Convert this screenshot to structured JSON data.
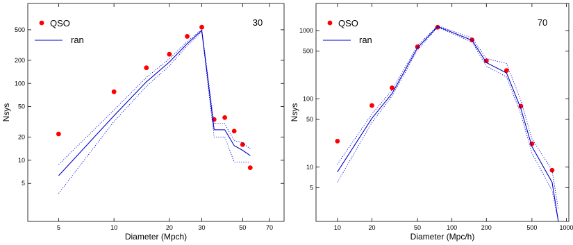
{
  "chart_data": [
    {
      "type": "line",
      "xscale": "log",
      "yscale": "log",
      "xlabel": "Diameter (Mpch)",
      "ylabel": "Nsys",
      "corner_label": "30",
      "xlim": [
        3.4,
        84
      ],
      "ylim": [
        1.6,
        1100
      ],
      "xticks": [
        5,
        10,
        20,
        30,
        50,
        70
      ],
      "xtick_labels": [
        "5",
        "10",
        "20",
        "30",
        "50",
        "70"
      ],
      "yticks": [
        5,
        10,
        20,
        50,
        100,
        200,
        500
      ],
      "ytick_labels": [
        "5",
        "10",
        "20",
        "50",
        "100",
        "200",
        "500"
      ],
      "legend": {
        "placement": "top-left",
        "entries": [
          "QSO",
          "ran"
        ]
      },
      "series": [
        {
          "name": "QSO",
          "style": "points",
          "color": "#ff0000",
          "x": [
            5,
            10,
            15,
            20,
            25,
            30,
            35,
            40,
            45,
            50,
            55
          ],
          "y": [
            22,
            78,
            160,
            240,
            410,
            540,
            34,
            36,
            24,
            16,
            8
          ]
        },
        {
          "name": "ran",
          "style": "solid",
          "color": "#0000cc",
          "x": [
            5,
            10,
            15,
            20,
            25,
            30,
            35,
            40,
            45,
            50,
            55
          ],
          "y": [
            6.3,
            38,
            105,
            190,
            330,
            490,
            25,
            25,
            15.5,
            13.5,
            11.5
          ]
        },
        {
          "style": "dotted",
          "color": "#0000cc",
          "x": [
            5,
            10,
            15,
            20,
            25,
            30,
            35,
            40,
            45,
            50,
            55
          ],
          "y": [
            8.8,
            45,
            120,
            210,
            350,
            505,
            30,
            30,
            18,
            17,
            14
          ]
        },
        {
          "style": "dotted",
          "color": "#0000cc",
          "x": [
            5,
            10,
            15,
            20,
            25,
            30,
            35,
            40,
            45,
            50,
            55
          ],
          "y": [
            3.7,
            32,
            92,
            170,
            310,
            470,
            20,
            20,
            9.5,
            9.5,
            9.5
          ]
        }
      ]
    },
    {
      "type": "line",
      "xscale": "log",
      "yscale": "log",
      "xlabel": "Diameter (Mpc/h)",
      "ylabel": "Nsys",
      "corner_label": "70",
      "xlim": [
        6.5,
        1050
      ],
      "ylim": [
        1.6,
        2500
      ],
      "xticks": [
        10,
        20,
        50,
        100,
        200,
        500,
        1000
      ],
      "xtick_labels": [
        "10",
        "20",
        "50",
        "100",
        "200",
        "500",
        "1000"
      ],
      "yticks": [
        5,
        10,
        50,
        100,
        500,
        1000
      ],
      "ytick_labels": [
        "5",
        "10",
        "50",
        "100",
        "500",
        "1000"
      ],
      "legend": {
        "placement": "top-left",
        "entries": [
          "QSO",
          "ran"
        ]
      },
      "series": [
        {
          "name": "QSO",
          "style": "points",
          "color": "#ff0000",
          "x": [
            10,
            20,
            30,
            50,
            75,
            150,
            200,
            300,
            400,
            500,
            750
          ],
          "y": [
            24,
            80,
            145,
            580,
            1120,
            730,
            360,
            260,
            78,
            22,
            9
          ]
        },
        {
          "name": "ran",
          "style": "solid",
          "color": "#0000cc",
          "x": [
            10,
            20,
            30,
            50,
            75,
            150,
            200,
            300,
            400,
            500,
            750,
            850
          ],
          "y": [
            8.5,
            52,
            120,
            560,
            1150,
            720,
            340,
            240,
            72,
            20,
            6,
            1.6
          ]
        },
        {
          "style": "dotted",
          "color": "#0000cc",
          "x": [
            10,
            20,
            30,
            50,
            75,
            150,
            200,
            300,
            400,
            500,
            750,
            850
          ],
          "y": [
            11,
            60,
            135,
            600,
            1180,
            780,
            390,
            330,
            95,
            26,
            9,
            2.4
          ]
        },
        {
          "style": "dotted",
          "color": "#0000cc",
          "x": [
            10,
            20,
            30,
            50,
            75,
            150,
            200,
            300,
            400,
            500,
            750,
            850
          ],
          "y": [
            6,
            45,
            110,
            520,
            1120,
            680,
            300,
            210,
            60,
            16,
            4.5,
            1.6
          ]
        }
      ]
    }
  ]
}
